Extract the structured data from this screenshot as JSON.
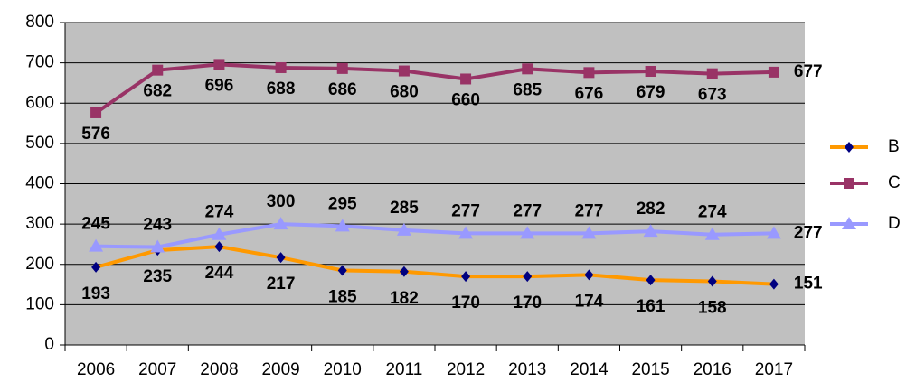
{
  "chart_data": {
    "type": "line",
    "categories": [
      "2006",
      "2007",
      "2008",
      "2009",
      "2010",
      "2011",
      "2012",
      "2013",
      "2014",
      "2015",
      "2016",
      "2017"
    ],
    "series": [
      {
        "name": "B",
        "color": "#ff9900",
        "marker": "diamond",
        "values": [
          193,
          235,
          244,
          217,
          185,
          182,
          170,
          170,
          174,
          161,
          158,
          151
        ]
      },
      {
        "name": "C",
        "color": "#993366",
        "marker": "square",
        "values": [
          576,
          682,
          696,
          688,
          686,
          680,
          660,
          685,
          676,
          679,
          673,
          677
        ]
      },
      {
        "name": "D",
        "color": "#9999ff",
        "marker": "triangle",
        "values": [
          245,
          243,
          274,
          300,
          295,
          285,
          277,
          277,
          277,
          282,
          274,
          277
        ]
      }
    ],
    "ylim": [
      0,
      800
    ],
    "yticks": [
      0,
      100,
      200,
      300,
      400,
      500,
      600,
      700,
      800
    ],
    "grid": true,
    "legend": "right"
  }
}
